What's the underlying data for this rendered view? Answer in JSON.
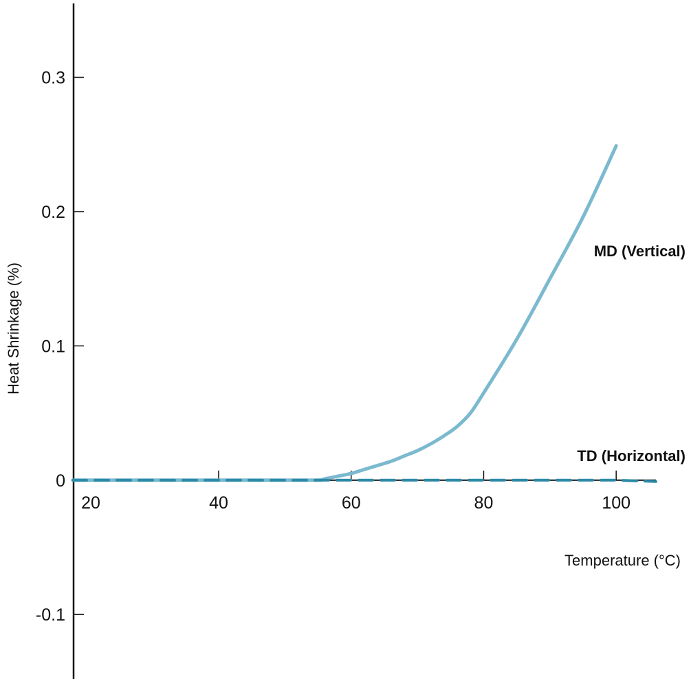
{
  "chart_data": {
    "type": "line",
    "title": "",
    "xlabel": "Temperature (°C)",
    "ylabel": "Heat Shrinkage (%)",
    "xlim": [
      18,
      106
    ],
    "ylim": [
      -0.148,
      0.355
    ],
    "x_ticks": [
      20,
      40,
      60,
      80,
      100
    ],
    "x_tick_labels": [
      "20",
      "40",
      "60",
      "80",
      "100"
    ],
    "y_ticks": [
      -0.1,
      0,
      0.1,
      0.2,
      0.3
    ],
    "y_tick_labels": [
      "-0.1",
      "0",
      "0.1",
      "0.2",
      "0.3"
    ],
    "grid": false,
    "series": [
      {
        "name": "MD (Vertical)",
        "color": "#7bb9cf",
        "style": "solid",
        "x": [
          18,
          40,
          54,
          56,
          58,
          60,
          62,
          64,
          66,
          68,
          70,
          72,
          74,
          76,
          78,
          80,
          85,
          90,
          95,
          100
        ],
        "y": [
          0,
          0,
          0,
          0.001,
          0.003,
          0.005,
          0.008,
          0.011,
          0.014,
          0.018,
          0.022,
          0.027,
          0.033,
          0.04,
          0.05,
          0.065,
          0.105,
          0.15,
          0.196,
          0.249
        ]
      },
      {
        "name": "TD (Horizontal)",
        "color": "#2d8aa8",
        "style": "dashed",
        "x": [
          18,
          40,
          60,
          80,
          100,
          106
        ],
        "y": [
          0,
          0,
          0,
          0,
          0,
          -0.001
        ]
      }
    ]
  }
}
